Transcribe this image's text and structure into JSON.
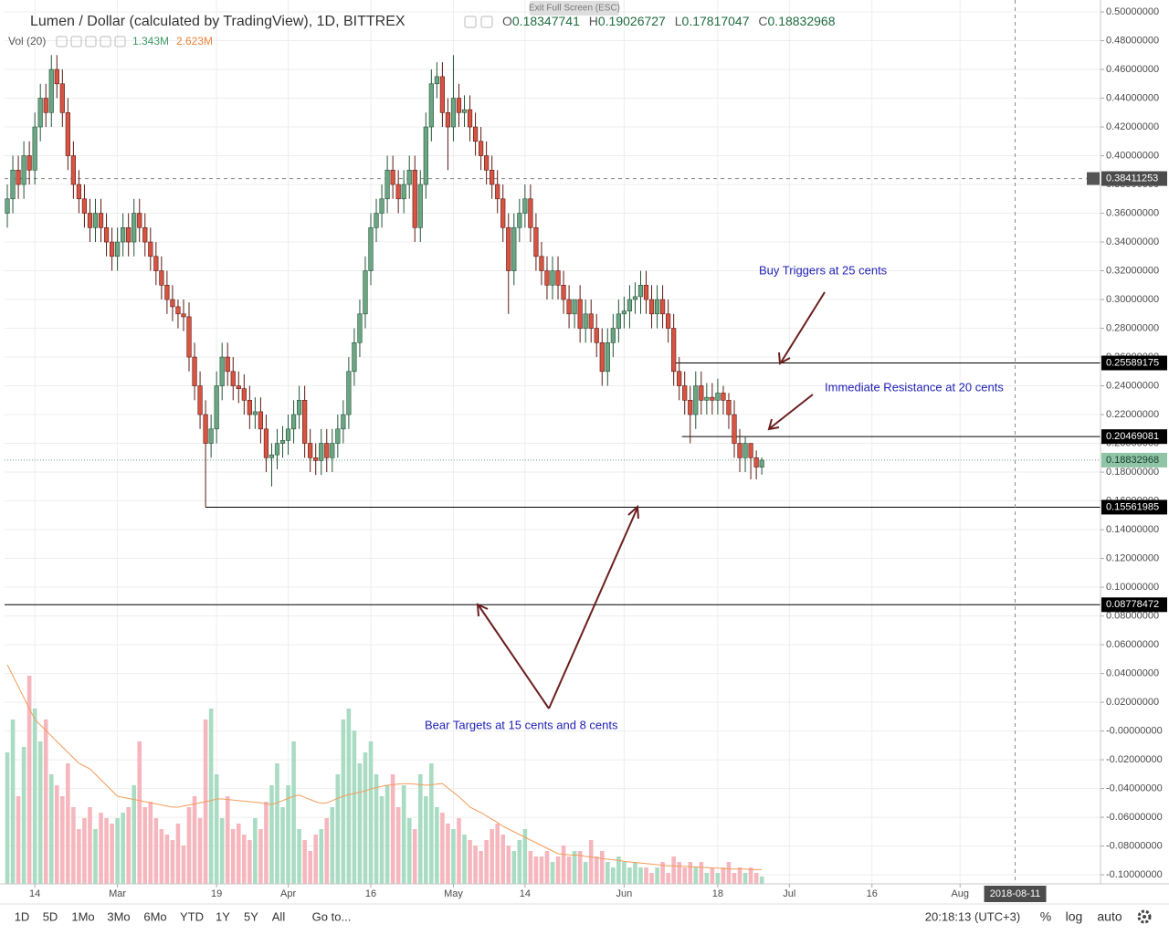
{
  "chart_data": {
    "type": "candlestick",
    "title": "Lumen / Dollar (calculated by TradingView), 1D, BITTREX",
    "ohlc_letters": [
      "O",
      "H",
      "L",
      "C"
    ],
    "up_color": "#6ba583",
    "up_border": "#225437",
    "down_color": "#d75442",
    "down_border": "#5b1a13",
    "candles": [
      [
        0.36,
        0.38,
        0.35,
        0.37
      ],
      [
        0.37,
        0.4,
        0.36,
        0.39
      ],
      [
        0.39,
        0.4,
        0.37,
        0.38
      ],
      [
        0.38,
        0.41,
        0.37,
        0.4
      ],
      [
        0.4,
        0.41,
        0.38,
        0.39
      ],
      [
        0.39,
        0.43,
        0.38,
        0.42
      ],
      [
        0.42,
        0.45,
        0.41,
        0.44
      ],
      [
        0.44,
        0.45,
        0.42,
        0.43
      ],
      [
        0.43,
        0.47,
        0.42,
        0.46
      ],
      [
        0.46,
        0.47,
        0.44,
        0.45
      ],
      [
        0.45,
        0.46,
        0.42,
        0.43
      ],
      [
        0.43,
        0.44,
        0.39,
        0.4
      ],
      [
        0.4,
        0.41,
        0.37,
        0.38
      ],
      [
        0.38,
        0.39,
        0.36,
        0.37
      ],
      [
        0.37,
        0.38,
        0.35,
        0.36
      ],
      [
        0.36,
        0.37,
        0.34,
        0.35
      ],
      [
        0.35,
        0.37,
        0.34,
        0.36
      ],
      [
        0.36,
        0.37,
        0.34,
        0.35
      ],
      [
        0.35,
        0.36,
        0.33,
        0.34
      ],
      [
        0.34,
        0.35,
        0.32,
        0.33
      ],
      [
        0.33,
        0.35,
        0.32,
        0.34
      ],
      [
        0.34,
        0.36,
        0.33,
        0.35
      ],
      [
        0.35,
        0.36,
        0.33,
        0.34
      ],
      [
        0.34,
        0.37,
        0.33,
        0.36
      ],
      [
        0.36,
        0.37,
        0.34,
        0.35
      ],
      [
        0.35,
        0.36,
        0.33,
        0.34
      ],
      [
        0.34,
        0.35,
        0.32,
        0.33
      ],
      [
        0.33,
        0.34,
        0.31,
        0.32
      ],
      [
        0.32,
        0.33,
        0.3,
        0.31
      ],
      [
        0.31,
        0.32,
        0.29,
        0.3
      ],
      [
        0.3,
        0.31,
        0.285,
        0.295
      ],
      [
        0.295,
        0.3,
        0.28,
        0.29
      ],
      [
        0.29,
        0.3,
        0.278,
        0.288
      ],
      [
        0.288,
        0.298,
        0.25,
        0.26
      ],
      [
        0.26,
        0.27,
        0.23,
        0.24
      ],
      [
        0.24,
        0.25,
        0.21,
        0.22
      ],
      [
        0.22,
        0.23,
        0.1556,
        0.2
      ],
      [
        0.2,
        0.22,
        0.19,
        0.21
      ],
      [
        0.21,
        0.25,
        0.2,
        0.24
      ],
      [
        0.24,
        0.27,
        0.23,
        0.26
      ],
      [
        0.26,
        0.27,
        0.24,
        0.25
      ],
      [
        0.25,
        0.26,
        0.23,
        0.24
      ],
      [
        0.24,
        0.25,
        0.228,
        0.238
      ],
      [
        0.238,
        0.248,
        0.22,
        0.23
      ],
      [
        0.23,
        0.24,
        0.21,
        0.22
      ],
      [
        0.22,
        0.232,
        0.21,
        0.222
      ],
      [
        0.222,
        0.232,
        0.2,
        0.21
      ],
      [
        0.21,
        0.22,
        0.18,
        0.19
      ],
      [
        0.19,
        0.2,
        0.17,
        0.192
      ],
      [
        0.192,
        0.21,
        0.182,
        0.2
      ],
      [
        0.2,
        0.212,
        0.19,
        0.202
      ],
      [
        0.202,
        0.22,
        0.192,
        0.21
      ],
      [
        0.21,
        0.23,
        0.2,
        0.22
      ],
      [
        0.22,
        0.24,
        0.21,
        0.23
      ],
      [
        0.23,
        0.24,
        0.19,
        0.2
      ],
      [
        0.2,
        0.21,
        0.18,
        0.19
      ],
      [
        0.19,
        0.2,
        0.178,
        0.188
      ],
      [
        0.188,
        0.21,
        0.178,
        0.2
      ],
      [
        0.2,
        0.21,
        0.18,
        0.19
      ],
      [
        0.19,
        0.21,
        0.18,
        0.2
      ],
      [
        0.2,
        0.22,
        0.19,
        0.21
      ],
      [
        0.21,
        0.23,
        0.2,
        0.22
      ],
      [
        0.22,
        0.26,
        0.21,
        0.25
      ],
      [
        0.25,
        0.28,
        0.24,
        0.27
      ],
      [
        0.27,
        0.3,
        0.26,
        0.29
      ],
      [
        0.29,
        0.33,
        0.28,
        0.32
      ],
      [
        0.32,
        0.36,
        0.31,
        0.35
      ],
      [
        0.35,
        0.37,
        0.34,
        0.36
      ],
      [
        0.36,
        0.38,
        0.35,
        0.37
      ],
      [
        0.37,
        0.4,
        0.36,
        0.39
      ],
      [
        0.39,
        0.4,
        0.37,
        0.38
      ],
      [
        0.38,
        0.39,
        0.36,
        0.37
      ],
      [
        0.37,
        0.39,
        0.36,
        0.38
      ],
      [
        0.38,
        0.4,
        0.37,
        0.39
      ],
      [
        0.39,
        0.4,
        0.34,
        0.35
      ],
      [
        0.35,
        0.39,
        0.34,
        0.38
      ],
      [
        0.38,
        0.43,
        0.37,
        0.42
      ],
      [
        0.42,
        0.46,
        0.41,
        0.45
      ],
      [
        0.45,
        0.465,
        0.44,
        0.455
      ],
      [
        0.455,
        0.465,
        0.42,
        0.43
      ],
      [
        0.43,
        0.44,
        0.39,
        0.42
      ],
      [
        0.42,
        0.47,
        0.41,
        0.44
      ],
      [
        0.44,
        0.45,
        0.42,
        0.43
      ],
      [
        0.43,
        0.442,
        0.42,
        0.432
      ],
      [
        0.432,
        0.442,
        0.41,
        0.42
      ],
      [
        0.42,
        0.43,
        0.4,
        0.41
      ],
      [
        0.41,
        0.42,
        0.39,
        0.4
      ],
      [
        0.4,
        0.41,
        0.38,
        0.39
      ],
      [
        0.39,
        0.4,
        0.37,
        0.38
      ],
      [
        0.38,
        0.39,
        0.36,
        0.37
      ],
      [
        0.37,
        0.38,
        0.34,
        0.35
      ],
      [
        0.35,
        0.36,
        0.29,
        0.32
      ],
      [
        0.32,
        0.36,
        0.31,
        0.35
      ],
      [
        0.35,
        0.37,
        0.34,
        0.36
      ],
      [
        0.36,
        0.38,
        0.35,
        0.37
      ],
      [
        0.37,
        0.38,
        0.34,
        0.35
      ],
      [
        0.35,
        0.36,
        0.32,
        0.33
      ],
      [
        0.33,
        0.34,
        0.31,
        0.32
      ],
      [
        0.32,
        0.33,
        0.3,
        0.31
      ],
      [
        0.31,
        0.33,
        0.3,
        0.32
      ],
      [
        0.32,
        0.33,
        0.3,
        0.31
      ],
      [
        0.31,
        0.32,
        0.29,
        0.3
      ],
      [
        0.3,
        0.31,
        0.28,
        0.29
      ],
      [
        0.29,
        0.3,
        0.28,
        0.3
      ],
      [
        0.3,
        0.31,
        0.27,
        0.28
      ],
      [
        0.28,
        0.3,
        0.27,
        0.29
      ],
      [
        0.29,
        0.3,
        0.27,
        0.28
      ],
      [
        0.28,
        0.29,
        0.26,
        0.27
      ],
      [
        0.27,
        0.28,
        0.24,
        0.25
      ],
      [
        0.25,
        0.28,
        0.24,
        0.27
      ],
      [
        0.27,
        0.29,
        0.26,
        0.28
      ],
      [
        0.28,
        0.3,
        0.27,
        0.29
      ],
      [
        0.29,
        0.302,
        0.28,
        0.292
      ],
      [
        0.292,
        0.31,
        0.28,
        0.3
      ],
      [
        0.3,
        0.312,
        0.29,
        0.302
      ],
      [
        0.302,
        0.32,
        0.29,
        0.31
      ],
      [
        0.31,
        0.32,
        0.29,
        0.3
      ],
      [
        0.3,
        0.31,
        0.28,
        0.29
      ],
      [
        0.29,
        0.31,
        0.28,
        0.3
      ],
      [
        0.3,
        0.31,
        0.28,
        0.29
      ],
      [
        0.29,
        0.3,
        0.27,
        0.28
      ],
      [
        0.28,
        0.29,
        0.24,
        0.25
      ],
      [
        0.25,
        0.26,
        0.23,
        0.24
      ],
      [
        0.24,
        0.25,
        0.22,
        0.23
      ],
      [
        0.23,
        0.24,
        0.2,
        0.22
      ],
      [
        0.22,
        0.25,
        0.21,
        0.24
      ],
      [
        0.24,
        0.25,
        0.22,
        0.23
      ],
      [
        0.23,
        0.242,
        0.22,
        0.232
      ],
      [
        0.232,
        0.242,
        0.22,
        0.23
      ],
      [
        0.23,
        0.245,
        0.22,
        0.235
      ],
      [
        0.235,
        0.24,
        0.22,
        0.23
      ],
      [
        0.23,
        0.235,
        0.21,
        0.22
      ],
      [
        0.22,
        0.23,
        0.19,
        0.2
      ],
      [
        0.2,
        0.21,
        0.18,
        0.19
      ],
      [
        0.19,
        0.205,
        0.18,
        0.2
      ],
      [
        0.2,
        0.2,
        0.175,
        0.19
      ],
      [
        0.19,
        0.195,
        0.175,
        0.18347741
      ],
      [
        0.18347741,
        0.19026727,
        0.17817047,
        0.18832968
      ]
    ],
    "xlim": [
      -0.5,
      198.5
    ],
    "xticks": [
      {
        "value": 5,
        "label": "14"
      },
      {
        "value": 20,
        "label": "Mar"
      },
      {
        "value": 38,
        "label": "19"
      },
      {
        "value": 51,
        "label": "Apr"
      },
      {
        "value": 66,
        "label": "16"
      },
      {
        "value": 81,
        "label": "May"
      },
      {
        "value": 94,
        "label": "14"
      },
      {
        "value": 112,
        "label": "Jun"
      },
      {
        "value": 129,
        "label": "18"
      },
      {
        "value": 142,
        "label": "Jul"
      },
      {
        "value": 157,
        "label": "16"
      },
      {
        "value": 173,
        "label": "Aug"
      }
    ],
    "ylim": [
      -0.1063,
      0.5051
    ],
    "yticks": [
      {
        "value": 0.5,
        "label": "0.50000000"
      },
      {
        "value": 0.48,
        "label": "0.48000000"
      },
      {
        "value": 0.46,
        "label": "0.46000000"
      },
      {
        "value": 0.44,
        "label": "0.44000000"
      },
      {
        "value": 0.42,
        "label": "0.42000000"
      },
      {
        "value": 0.4,
        "label": "0.40000000"
      },
      {
        "value": 0.38,
        "label": "0.38000000"
      },
      {
        "value": 0.36,
        "label": "0.36000000"
      },
      {
        "value": 0.34,
        "label": "0.34000000"
      },
      {
        "value": 0.32,
        "label": "0.32000000"
      },
      {
        "value": 0.3,
        "label": "0.30000000"
      },
      {
        "value": 0.28,
        "label": "0.28000000"
      },
      {
        "value": 0.26,
        "label": "0.26000000"
      },
      {
        "value": 0.24,
        "label": "0.24000000"
      },
      {
        "value": 0.22,
        "label": "0.22000000"
      },
      {
        "value": 0.2,
        "label": "0.20000000"
      },
      {
        "value": 0.18,
        "label": "0.18000000"
      },
      {
        "value": 0.16,
        "label": "0.16000000"
      },
      {
        "value": 0.14,
        "label": "0.14000000"
      },
      {
        "value": 0.12,
        "label": "0.12000000"
      },
      {
        "value": 0.1,
        "label": "0.10000000"
      },
      {
        "value": 0.08,
        "label": "0.08000000"
      },
      {
        "value": 0.06,
        "label": "0.06000000"
      },
      {
        "value": 0.04,
        "label": "0.04000000"
      },
      {
        "value": 0.02,
        "label": "0.02000000"
      },
      {
        "value": 0,
        "label": "-0.00000000"
      },
      {
        "value": -0.02,
        "label": "-0.02000000"
      },
      {
        "value": -0.04,
        "label": "-0.04000000"
      },
      {
        "value": -0.06,
        "label": "-0.06000000"
      },
      {
        "value": -0.08,
        "label": "-0.08000000"
      },
      {
        "value": -0.1,
        "label": "-0.10000000"
      }
    ],
    "grid": true,
    "volume": {
      "title": "Vol (20)",
      "vlim": [
        0,
        160.5
      ],
      "up_color": "#a9dcc3",
      "down_color": "#f5b7bd",
      "ma_color": "#f39c5a",
      "labels": [
        "1.343M",
        "2.623M"
      ],
      "values": [
        24,
        30,
        16,
        25,
        38,
        32,
        26,
        30,
        20,
        18,
        16,
        22,
        14,
        10,
        12,
        14,
        10,
        13,
        12,
        11,
        12,
        13,
        14,
        18,
        26,
        14,
        15,
        12,
        10,
        9,
        8,
        11,
        7,
        14,
        16,
        12,
        30,
        32,
        20,
        12,
        16,
        10,
        11,
        9,
        8,
        12,
        10,
        15,
        18,
        22,
        14,
        18,
        26,
        10,
        8,
        6,
        9,
        10,
        12,
        14,
        20,
        30,
        32,
        28,
        22,
        24,
        26,
        20,
        16,
        18,
        20,
        14,
        18,
        12,
        10,
        20,
        16,
        22,
        14,
        13,
        11,
        10,
        12,
        9,
        8,
        7,
        6,
        8,
        10,
        11,
        9,
        7,
        6,
        8,
        10,
        6,
        5,
        5,
        6,
        4,
        5,
        7,
        5,
        6,
        6,
        4,
        8,
        5,
        6,
        4,
        3,
        5,
        4,
        3,
        4,
        3,
        3,
        2,
        3,
        4,
        2,
        5,
        4,
        3,
        4,
        3,
        4,
        2,
        3,
        2,
        3,
        4,
        2,
        3,
        2,
        3,
        2,
        1.343
      ],
      "ma": [
        40,
        38,
        36,
        34,
        32,
        30,
        29,
        28,
        27,
        26,
        25,
        24,
        23,
        22,
        21.5,
        21,
        20,
        19,
        18,
        17,
        16,
        15.8,
        15.6,
        15.4,
        15.2,
        15,
        14.8,
        14.6,
        14.4,
        14.2,
        14,
        14,
        14.2,
        14.4,
        14.6,
        14.8,
        15,
        15.2,
        15.5,
        15.5,
        15.4,
        15.3,
        15.2,
        15.1,
        15,
        14.9,
        14.8,
        14.6,
        14.5,
        14.8,
        15.2,
        15.6,
        16,
        16.2,
        15.8,
        15.4,
        15,
        14.7,
        14.8,
        15.2,
        15.6,
        16,
        16.3,
        16.5,
        16.7,
        17,
        17.3,
        17.6,
        17.8,
        18,
        18.1,
        18.2,
        18.3,
        18.3,
        18.2,
        18.1,
        18,
        18.1,
        18.2,
        18.3,
        17.5,
        16.7,
        15.9,
        15,
        14,
        13.5,
        13,
        12.4,
        11.8,
        11.2,
        10.5,
        10,
        9.5,
        9,
        8.5,
        8,
        7.5,
        7,
        6.5,
        6,
        5.5,
        5.4,
        5.3,
        5.25,
        5.2,
        5,
        4.9,
        4.8,
        4.6,
        4.5,
        4.4,
        4.3,
        4.1,
        4,
        3.9,
        3.8,
        3.7,
        3.6,
        3.5,
        3.4,
        3.3,
        3.3,
        3.2,
        3.2,
        3.1,
        3.1,
        3,
        3,
        2.9,
        2.9,
        2.8,
        2.7,
        2.7,
        2.7,
        2.7,
        2.6,
        2.6,
        2.623
      ]
    },
    "levels": [
      {
        "value": 0.25589175,
        "from": 121
      },
      {
        "value": 0.20469081,
        "from": 122.5
      },
      {
        "value": 0.15561985,
        "from": 36
      },
      {
        "value": 0.08778472
      }
    ],
    "crosshair": {
      "x": {
        "value": 183,
        "label": "2018-08-11"
      },
      "y": 0.38411253
    },
    "annotations": [
      "Buy Triggers at 25 cents",
      "Immediate Resistance at 20 cents",
      "Bear Targets at 15 cents and 8 cents"
    ],
    "tooltip": "Exit Full Screen (ESC)",
    "toolbar": {
      "ranges": [
        "1D",
        "5D",
        "1Mo",
        "3Mo",
        "6Mo",
        "YTD",
        "1Y",
        "5Y",
        "All"
      ],
      "goto": "Go to...",
      "clock": "20:18:13 (UTC+3)",
      "percent": "%",
      "log": "log",
      "auto": "auto"
    }
  }
}
